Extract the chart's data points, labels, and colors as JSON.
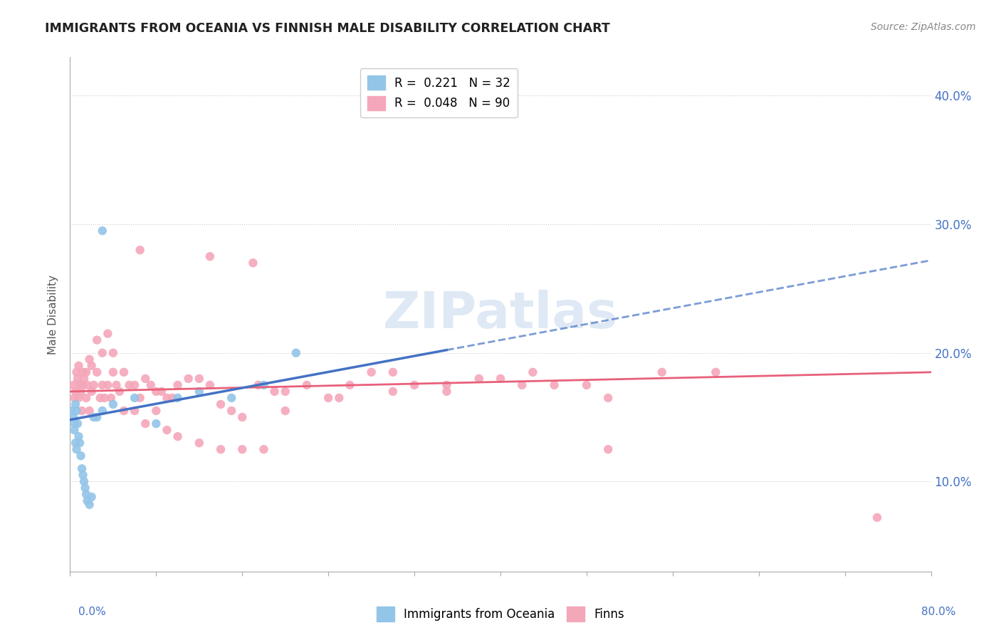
{
  "title": "IMMIGRANTS FROM OCEANIA VS FINNISH MALE DISABILITY CORRELATION CHART",
  "source": "Source: ZipAtlas.com",
  "ylabel": "Male Disability",
  "xmin": 0.0,
  "xmax": 0.8,
  "ymin": 0.03,
  "ymax": 0.43,
  "yticks": [
    0.1,
    0.2,
    0.3,
    0.4
  ],
  "ytick_labels": [
    "10.0%",
    "20.0%",
    "30.0%",
    "40.0%"
  ],
  "legend1_label": "Immigrants from Oceania",
  "legend2_label": "Finns",
  "blue_color": "#93C5E8",
  "pink_color": "#F4A7B9",
  "blue_line_color": "#4472C4",
  "pink_line_color": "#E8607A",
  "watermark": "ZIPatlas",
  "blue_x": [
    0.002,
    0.003,
    0.004,
    0.004,
    0.005,
    0.005,
    0.006,
    0.006,
    0.007,
    0.008,
    0.009,
    0.01,
    0.011,
    0.012,
    0.013,
    0.014,
    0.015,
    0.016,
    0.018,
    0.02,
    0.022,
    0.025,
    0.03,
    0.04,
    0.06,
    0.08,
    0.1,
    0.12,
    0.15,
    0.18,
    0.03,
    0.21
  ],
  "blue_y": [
    0.155,
    0.15,
    0.145,
    0.14,
    0.16,
    0.13,
    0.155,
    0.125,
    0.145,
    0.135,
    0.13,
    0.12,
    0.11,
    0.105,
    0.1,
    0.095,
    0.09,
    0.085,
    0.082,
    0.088,
    0.15,
    0.15,
    0.155,
    0.16,
    0.165,
    0.145,
    0.165,
    0.17,
    0.165,
    0.175,
    0.295,
    0.2
  ],
  "pink_x": [
    0.003,
    0.004,
    0.005,
    0.006,
    0.007,
    0.008,
    0.009,
    0.01,
    0.011,
    0.012,
    0.013,
    0.015,
    0.016,
    0.018,
    0.02,
    0.022,
    0.025,
    0.028,
    0.03,
    0.032,
    0.035,
    0.038,
    0.04,
    0.043,
    0.046,
    0.05,
    0.055,
    0.06,
    0.065,
    0.07,
    0.075,
    0.08,
    0.085,
    0.09,
    0.095,
    0.1,
    0.11,
    0.12,
    0.13,
    0.14,
    0.15,
    0.16,
    0.175,
    0.19,
    0.2,
    0.22,
    0.24,
    0.26,
    0.28,
    0.3,
    0.32,
    0.35,
    0.38,
    0.4,
    0.42,
    0.45,
    0.48,
    0.5,
    0.55,
    0.6,
    0.008,
    0.01,
    0.012,
    0.015,
    0.018,
    0.02,
    0.025,
    0.03,
    0.035,
    0.04,
    0.05,
    0.06,
    0.07,
    0.08,
    0.09,
    0.1,
    0.12,
    0.14,
    0.16,
    0.18,
    0.2,
    0.25,
    0.3,
    0.35,
    0.065,
    0.13,
    0.17,
    0.43,
    0.5,
    0.75
  ],
  "pink_y": [
    0.175,
    0.165,
    0.17,
    0.185,
    0.18,
    0.165,
    0.175,
    0.17,
    0.155,
    0.175,
    0.18,
    0.165,
    0.175,
    0.155,
    0.17,
    0.175,
    0.185,
    0.165,
    0.175,
    0.165,
    0.175,
    0.165,
    0.185,
    0.175,
    0.17,
    0.185,
    0.175,
    0.175,
    0.165,
    0.18,
    0.175,
    0.17,
    0.17,
    0.165,
    0.165,
    0.175,
    0.18,
    0.18,
    0.175,
    0.16,
    0.155,
    0.15,
    0.175,
    0.17,
    0.17,
    0.175,
    0.165,
    0.175,
    0.185,
    0.185,
    0.175,
    0.175,
    0.18,
    0.18,
    0.175,
    0.175,
    0.175,
    0.165,
    0.185,
    0.185,
    0.19,
    0.175,
    0.185,
    0.185,
    0.195,
    0.19,
    0.21,
    0.2,
    0.215,
    0.2,
    0.155,
    0.155,
    0.145,
    0.155,
    0.14,
    0.135,
    0.13,
    0.125,
    0.125,
    0.125,
    0.155,
    0.165,
    0.17,
    0.17,
    0.28,
    0.275,
    0.27,
    0.185,
    0.125,
    0.072
  ],
  "blue_line_x": [
    0.0,
    0.8
  ],
  "blue_line_y": [
    0.148,
    0.272
  ],
  "pink_line_x": [
    0.0,
    0.8
  ],
  "pink_line_y": [
    0.17,
    0.185
  ]
}
